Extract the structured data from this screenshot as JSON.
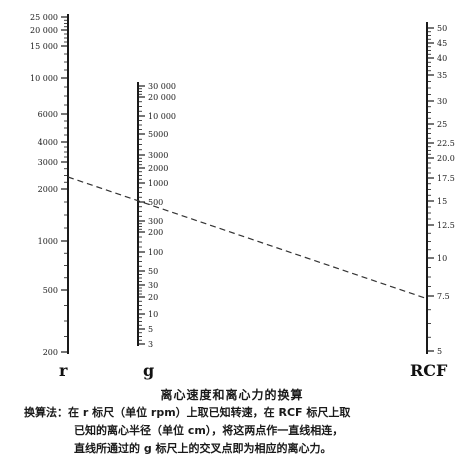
{
  "axes": {
    "r": {
      "name": "r",
      "ticks": [
        "25 000",
        "20 000",
        "15 000",
        "10 000",
        "6000",
        "4000",
        "3000",
        "2000",
        "1000",
        "500",
        "200"
      ]
    },
    "g": {
      "name": "g",
      "ticks": [
        "30 000",
        "20 000",
        "10 000",
        "5000",
        "3000",
        "2000",
        "1000",
        "500",
        "300",
        "200",
        "100",
        "50",
        "30",
        "20",
        "10",
        "5",
        "3"
      ]
    },
    "rcf": {
      "name": "RCF",
      "ticks": [
        "50",
        "45",
        "40",
        "35",
        "30",
        "25",
        "22.5",
        "20.0",
        "17.5",
        "15",
        "12.5",
        "10",
        "7.5",
        "5"
      ]
    }
  },
  "caption": {
    "title": "离心速度和离心力的换算",
    "method_line1": "换算法：在 r 标尺（单位 rpm）上取已知转速，在 RCF 标尺上取",
    "method_line2": "已知的离心半径（单位 cm），将这两点作一直线相连，",
    "method_line3": "直线所通过的 g 标尺上的交叉点即为相应的离心力。"
  },
  "colors": {
    "ink": "#1a1a1a",
    "dashed_line": "#333333"
  }
}
